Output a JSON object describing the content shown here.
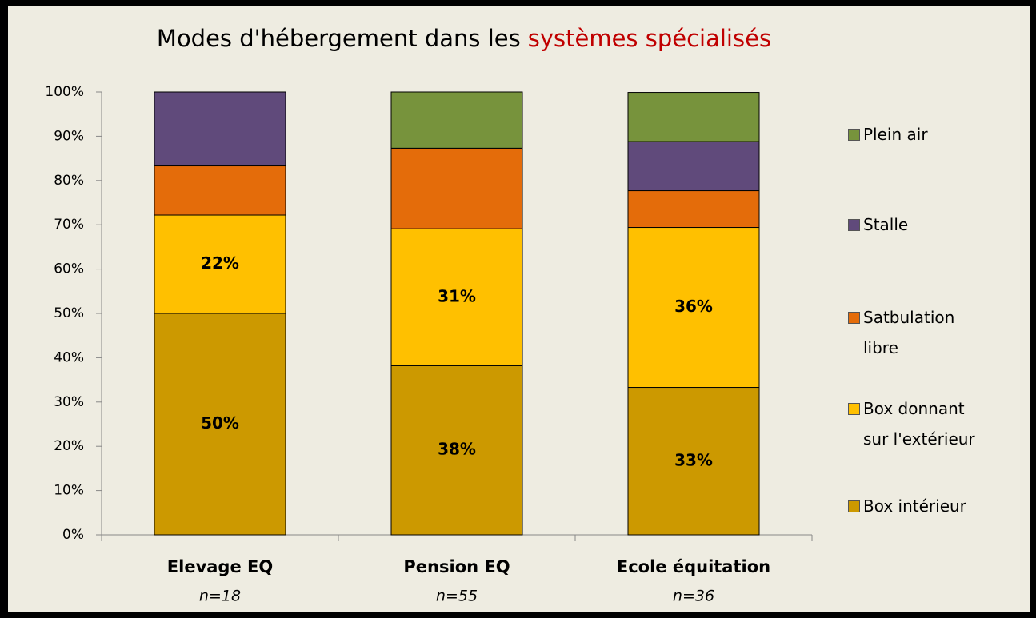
{
  "chart_data": {
    "type": "stacked_bar",
    "title": {
      "text": "Modes d'hébergement dans les",
      "highlight": "systèmes spécialisés",
      "highlight_color": "#c00000"
    },
    "categories": [
      "Elevage EQ",
      "Pension EQ",
      "Ecole équitation"
    ],
    "category_notes": [
      "n=18",
      "n=55",
      "n=36"
    ],
    "series": [
      {
        "name": "Box intérieur",
        "color": "#cc9900",
        "values": [
          50,
          38.2,
          33.3
        ],
        "value_labels": [
          "50%",
          "38%",
          "33%"
        ]
      },
      {
        "name": "Box donnant sur l'extérieur",
        "color": "#ffc000",
        "values": [
          22.2,
          30.9,
          36.1
        ],
        "value_labels": [
          "22%",
          "31%",
          "36%"
        ]
      },
      {
        "name": "Satbulation libre",
        "color": "#e46c0a",
        "values": [
          11.1,
          18.2,
          8.3
        ]
      },
      {
        "name": "Stalle",
        "color": "#604a7b",
        "values": [
          16.7,
          0,
          11.1
        ]
      },
      {
        "name": "Plein air",
        "color": "#77933c",
        "values": [
          0,
          12.7,
          11.1
        ]
      }
    ],
    "ylim": [
      0,
      100
    ],
    "yticks": [
      {
        "value": 0,
        "label": "0%"
      },
      {
        "value": 10,
        "label": "10%"
      },
      {
        "value": 20,
        "label": "20%"
      },
      {
        "value": 30,
        "label": "30%"
      },
      {
        "value": 40,
        "label": "40%"
      },
      {
        "value": 50,
        "label": "50%"
      },
      {
        "value": 60,
        "label": "60%"
      },
      {
        "value": 70,
        "label": "70%"
      },
      {
        "value": 80,
        "label": "80%"
      },
      {
        "value": 90,
        "label": "90%"
      },
      {
        "value": 100,
        "label": "100%"
      }
    ],
    "legend": "right"
  }
}
